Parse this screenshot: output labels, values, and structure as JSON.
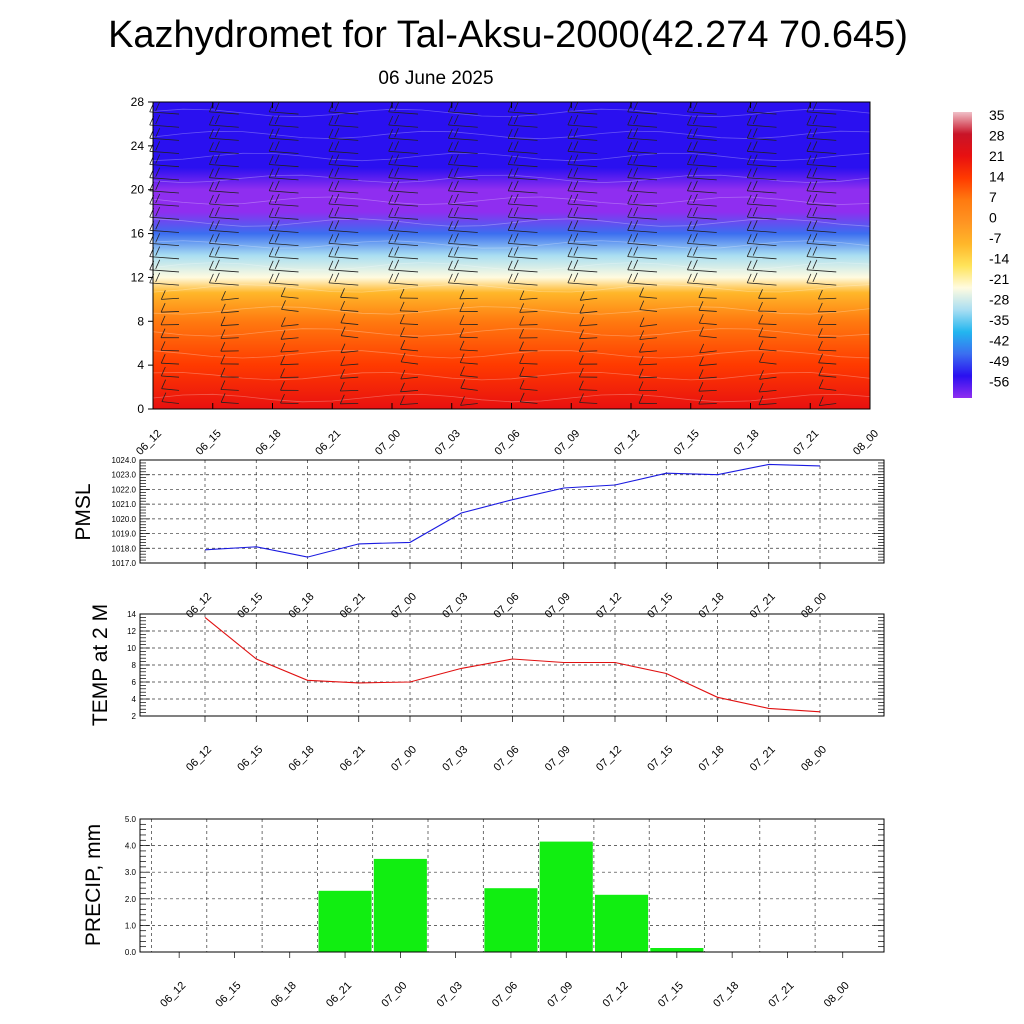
{
  "title": "Kazhydromet for Tal-Aksu-2000(42.274 70.645)",
  "subtitle": "06 June 2025",
  "time_labels": [
    "06_12",
    "06_15",
    "06_18",
    "06_21",
    "07_00",
    "07_03",
    "07_06",
    "07_09",
    "07_12",
    "07_15",
    "07_18",
    "07_21",
    "08_00"
  ],
  "chart_data": [
    {
      "type": "heatmap",
      "title": "",
      "xlabel": "",
      "ylabel": "",
      "categories": [
        "06_12",
        "06_15",
        "06_18",
        "06_21",
        "07_00",
        "07_03",
        "07_06",
        "07_09",
        "07_12",
        "07_15",
        "07_18",
        "07_21",
        "08_00"
      ],
      "y_ticks": [
        0,
        4,
        8,
        12,
        16,
        20,
        24,
        28
      ],
      "ylim": [
        0,
        28
      ],
      "color_levels": [
        -56,
        -49,
        -42,
        -35,
        -28,
        -21,
        -14,
        -7,
        0,
        7,
        14,
        21,
        28,
        35
      ],
      "color_stops": [
        "#8f2ef0",
        "#2a10f0",
        "#3b6ef0",
        "#22b6ef",
        "#a9def2",
        "#fffbe0",
        "#ffe45a",
        "#ffb72a",
        "#ff9422",
        "#ff7a10",
        "#ff3a00",
        "#e81010",
        "#c81428",
        "#f0c0c8"
      ],
      "temperature_profile": [
        {
          "level": 0,
          "value": 20
        },
        {
          "level": 4,
          "value": 14
        },
        {
          "level": 8,
          "value": 6
        },
        {
          "level": 10.6,
          "value": -5
        },
        {
          "level": 12,
          "value": -22
        },
        {
          "level": 14,
          "value": -30
        },
        {
          "level": 16,
          "value": -42
        },
        {
          "level": 18,
          "value": -56
        },
        {
          "level": 20,
          "value": -55
        },
        {
          "level": 22,
          "value": -52
        },
        {
          "level": 28,
          "value": -52
        }
      ],
      "wind_barbs": "present"
    },
    {
      "type": "line",
      "title": "",
      "xlabel": "",
      "ylabel": "PMSL",
      "categories": [
        "06_12",
        "06_15",
        "06_18",
        "06_21",
        "07_00",
        "07_03",
        "07_06",
        "07_09",
        "07_12",
        "07_15",
        "07_18",
        "07_21",
        "08_00"
      ],
      "series": [
        {
          "values": [
            1017.9,
            1018.1,
            1017.4,
            1018.3,
            1018.4,
            1020.4,
            1021.3,
            1022.1,
            1022.3,
            1023.1,
            1023.0,
            1023.7,
            1023.6
          ]
        }
      ],
      "ylim": [
        1017.0,
        1024.0
      ],
      "y_ticks": [
        "1017.0",
        "1018.0",
        "1019.0",
        "1020.0",
        "1021.0",
        "1022.0",
        "1023.0",
        "1024.0"
      ],
      "color": "#1a1ae0",
      "grid": true
    },
    {
      "type": "line",
      "title": "",
      "xlabel": "",
      "ylabel": "TEMP at 2 M",
      "categories": [
        "06_12",
        "06_15",
        "06_18",
        "06_21",
        "07_00",
        "07_03",
        "07_06",
        "07_09",
        "07_12",
        "07_15",
        "07_18",
        "07_21",
        "08_00"
      ],
      "series": [
        {
          "values": [
            13.6,
            8.7,
            6.2,
            5.9,
            6.0,
            7.6,
            8.7,
            8.3,
            8.3,
            7.0,
            4.2,
            2.9,
            2.5
          ]
        }
      ],
      "ylim": [
        2,
        14
      ],
      "y_ticks": [
        "2",
        "4",
        "6",
        "8",
        "10",
        "12",
        "14"
      ],
      "color": "#e01010",
      "grid": true
    },
    {
      "type": "bar",
      "title": "",
      "xlabel": "",
      "ylabel": "PRECIP, mm",
      "categories": [
        "06_12",
        "06_15",
        "06_18",
        "06_21",
        "07_00",
        "07_03",
        "07_06",
        "07_09",
        "07_12",
        "07_15",
        "07_18",
        "07_21",
        "08_00"
      ],
      "values": [
        0.0,
        0.0,
        0.0,
        2.3,
        3.5,
        0.0,
        2.4,
        4.15,
        2.15,
        0.15,
        0.0,
        0.0,
        0.0
      ],
      "ylim": [
        0.0,
        5.0
      ],
      "y_ticks": [
        "0.0",
        "1.0",
        "2.0",
        "3.0",
        "4.0",
        "5.0"
      ],
      "color": "#11ee11",
      "grid": true
    }
  ]
}
